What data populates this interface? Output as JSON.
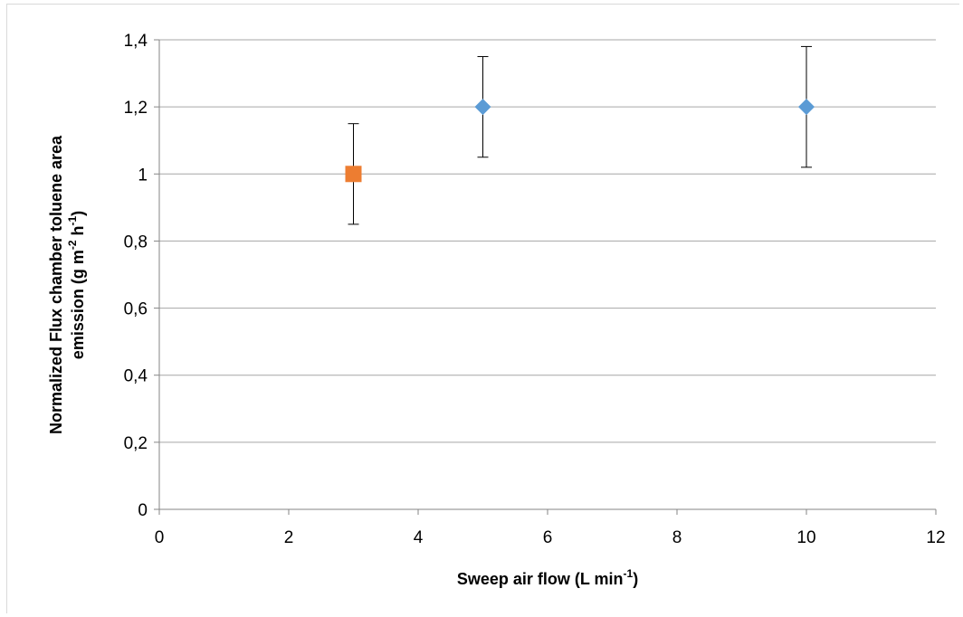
{
  "chart_data": {
    "type": "scatter",
    "title": "",
    "xlabel": {
      "main": "Sweep air flow (L min",
      "sup": "-1",
      "close": ")"
    },
    "ylabel": {
      "line1": "Normalized Flux chamber toluene area",
      "line2_prefix": "emission (g m",
      "line2_sup1": "-2",
      "line2_mid": " h",
      "line2_sup2": "-1",
      "line2_close": ")"
    },
    "xlim": [
      0,
      12
    ],
    "ylim": [
      0,
      1.4
    ],
    "x_ticks": [
      0,
      2,
      4,
      6,
      8,
      10,
      12
    ],
    "y_ticks": [
      0,
      0.2,
      0.4,
      0.6,
      0.8,
      1,
      1.2,
      1.4
    ],
    "x_tick_labels": [
      "0",
      "2",
      "4",
      "6",
      "8",
      "10",
      "12"
    ],
    "y_tick_labels": [
      "0",
      "0,2",
      "0,4",
      "0,6",
      "0,8",
      "1",
      "1,2",
      "1,4"
    ],
    "grid": "horizontal",
    "legend": "none",
    "series": [
      {
        "marker": "square",
        "color": "#ED7D31",
        "points": [
          {
            "x": 3,
            "y": 1.0,
            "err_low": 0.85,
            "err_high": 1.15
          }
        ]
      },
      {
        "marker": "diamond",
        "color": "#5B9BD5",
        "points": [
          {
            "x": 5,
            "y": 1.2,
            "err_low": 1.05,
            "err_high": 1.35
          },
          {
            "x": 10,
            "y": 1.2,
            "err_low": 1.02,
            "err_high": 1.38
          }
        ]
      }
    ]
  }
}
